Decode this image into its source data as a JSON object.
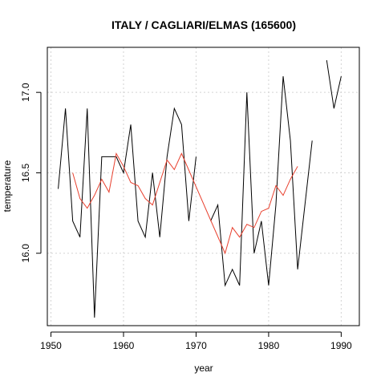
{
  "chart_data": {
    "type": "line",
    "title": "ITALY / CAGLIARI/ELMAS (165600)",
    "xlabel": "year",
    "ylabel": "temperature",
    "xlim": [
      1949.5,
      1992.5
    ],
    "ylim": [
      15.55,
      17.28
    ],
    "x_ticks": [
      1950,
      1960,
      1970,
      1980,
      1990
    ],
    "x_tick_labels": [
      "1950",
      "1960",
      "1970",
      "1980",
      "1990"
    ],
    "y_ticks": [
      16.0,
      16.5,
      17.0
    ],
    "y_tick_labels": [
      "16.0",
      "16.5",
      "17.0"
    ],
    "grid": true,
    "series": [
      {
        "color": "#000000",
        "x": [
          1951,
          1952,
          1953,
          1954,
          1955,
          1956,
          1957,
          1958,
          1959,
          1960,
          1961,
          1962,
          1963,
          1964,
          1965,
          1966,
          1967,
          1968,
          1969,
          1970,
          1971,
          1972,
          1973,
          1974,
          1975,
          1976,
          1977,
          1978,
          1979,
          1980,
          1981,
          1982,
          1983,
          1984,
          1985,
          1986,
          1987,
          1988,
          1989,
          1990
        ],
        "values": [
          16.4,
          16.9,
          16.2,
          16.1,
          16.9,
          15.6,
          16.6,
          16.6,
          16.6,
          16.5,
          16.8,
          16.2,
          16.1,
          16.5,
          16.1,
          16.6,
          16.9,
          16.8,
          16.2,
          16.6,
          null,
          16.2,
          16.3,
          15.8,
          15.9,
          15.8,
          17.0,
          16.0,
          16.2,
          15.8,
          16.3,
          17.1,
          16.7,
          15.9,
          16.3,
          16.7,
          null,
          17.2,
          16.9,
          17.1
        ]
      },
      {
        "color": "#e8402e",
        "x": [
          1953,
          1954,
          1955,
          1956,
          1957,
          1958,
          1959,
          1960,
          1961,
          1962,
          1963,
          1964,
          1965,
          1966,
          1967,
          1968,
          1974,
          1975,
          1976,
          1977,
          1978,
          1979,
          1980,
          1981,
          1982,
          1983,
          1984
        ],
        "values": [
          16.5,
          16.34,
          16.28,
          16.36,
          16.46,
          16.38,
          16.62,
          16.54,
          16.44,
          16.42,
          16.34,
          16.3,
          16.44,
          16.58,
          16.52,
          16.62,
          16.0,
          16.16,
          16.1,
          16.18,
          16.16,
          16.26,
          16.28,
          16.42,
          16.36,
          16.46,
          16.54
        ]
      }
    ]
  }
}
